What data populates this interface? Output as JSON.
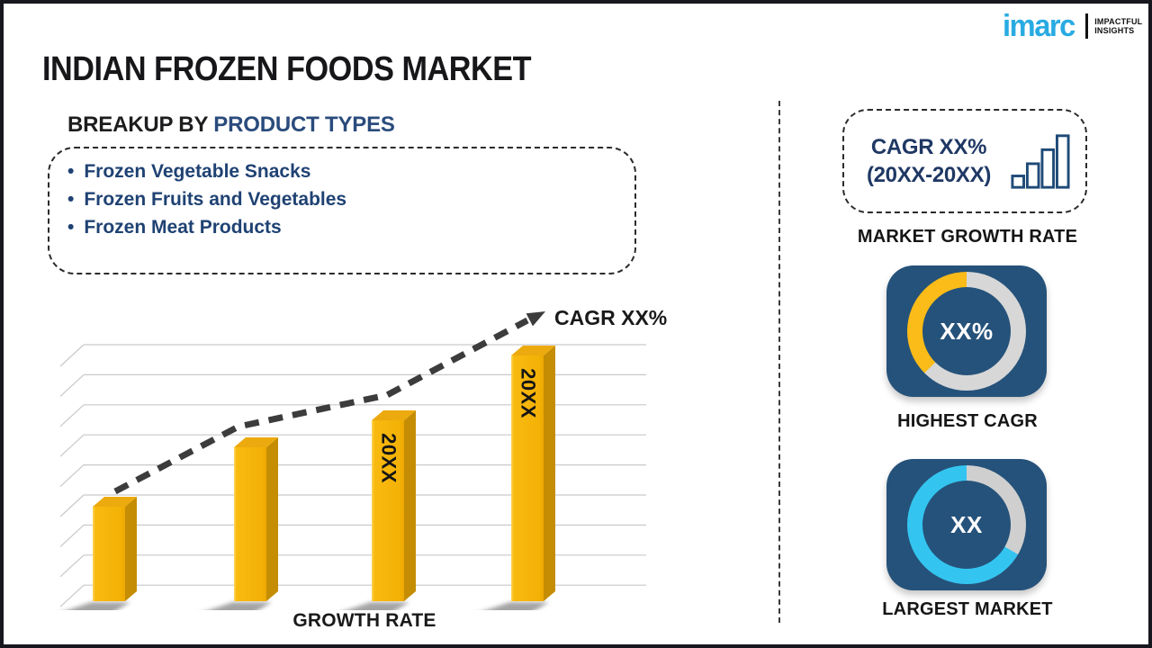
{
  "header": {
    "title": "INDIAN FROZEN FOODS MARKET"
  },
  "logo": {
    "brand": "imarc",
    "tagline_top": "IMPACTFUL",
    "tagline_bottom": "INSIGHTS",
    "brand_color": "#29ABE2"
  },
  "breakup": {
    "heading_prefix": "BREAKUP BY",
    "heading_highlight": "PRODUCT TYPES",
    "items": [
      "Frozen Vegetable Snacks",
      "Frozen Fruits and Vegetables",
      "Frozen Meat Products"
    ]
  },
  "chart_data": {
    "type": "bar",
    "title": "",
    "xlabel": "GROWTH RATE",
    "ylabel": "",
    "categories": [
      "",
      "",
      "",
      ""
    ],
    "values": [
      35,
      57,
      67,
      91
    ],
    "bar_labels": [
      "",
      "",
      "20XX",
      "20XX"
    ],
    "ylim": [
      0,
      100
    ],
    "grid": true,
    "n_gridlines": 9,
    "trend_label": "CAGR XX%",
    "bar_color": "#F8B70D",
    "bar_side_color": "#C48D03",
    "bar_top_color": "#EDAA0E",
    "trend_color": "#3C3C3C"
  },
  "right_panel": {
    "cagr_box": {
      "line1": "CAGR XX%",
      "line2": "(20XX-20XX)"
    },
    "market_growth_label": "MARKET GROWTH RATE",
    "highest_cagr": {
      "value": "XX%",
      "label": "HIGHEST CAGR",
      "fill_color": "#FBBB18",
      "track_color": "#D7D7D7",
      "fill_from_deg": 225
    },
    "largest_market": {
      "value": "XX",
      "label": "LARGEST MARKET",
      "fill_color": "#33C5F0",
      "track_color": "#CFCFCF",
      "fill_from_deg": 120
    }
  },
  "colors": {
    "tile_navy": "#25527A",
    "accent_navy": "#1F3864",
    "heading_blue": "#2A4B7C",
    "bullet_blue": "#1F4273",
    "brand_cyan": "#29ABE2",
    "frame_dark": "#17171F"
  }
}
